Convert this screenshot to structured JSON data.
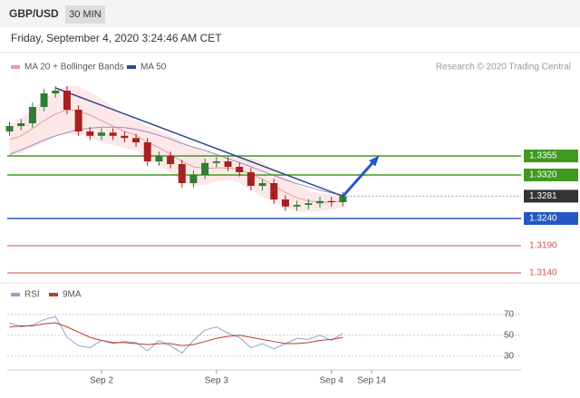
{
  "header": {
    "symbol": "GBP/USD",
    "interval": "30 MIN",
    "timestamp": "Friday, September 4, 2020 3:24:46 AM CET"
  },
  "chart_data": [
    {
      "type": "candlestick",
      "legend": [
        {
          "name": "MA 20 + Bollinger Bands",
          "color": "#e89a9a"
        },
        {
          "name": "MA 50",
          "color": "#2f4a8f"
        }
      ],
      "credit": "Research © 2020 Trading Central",
      "open": [
        1.34,
        1.341,
        1.3415,
        1.3445,
        1.347,
        1.3475,
        1.344,
        1.34,
        1.3392,
        1.3398,
        1.3392,
        1.3388,
        1.338,
        1.3345,
        1.3355,
        1.334,
        1.3305,
        1.332,
        1.3342,
        1.3345,
        1.3335,
        1.3325,
        1.33,
        1.3305,
        1.3275,
        1.3262,
        1.3265,
        1.3268,
        1.3272,
        1.327
      ],
      "high": [
        1.3418,
        1.3423,
        1.3453,
        1.3478,
        1.3483,
        1.3483,
        1.3448,
        1.3408,
        1.3406,
        1.3406,
        1.34,
        1.3396,
        1.3388,
        1.3363,
        1.3363,
        1.3348,
        1.3328,
        1.335,
        1.3353,
        1.3353,
        1.3343,
        1.3333,
        1.3313,
        1.3313,
        1.3283,
        1.3273,
        1.3276,
        1.328,
        1.328,
        1.3289
      ],
      "low": [
        1.3392,
        1.3402,
        1.3407,
        1.3437,
        1.3462,
        1.3432,
        1.3392,
        1.3384,
        1.3384,
        1.3384,
        1.338,
        1.3372,
        1.3337,
        1.3337,
        1.3332,
        1.3297,
        1.3297,
        1.3312,
        1.3334,
        1.3327,
        1.3317,
        1.3292,
        1.3292,
        1.3267,
        1.3254,
        1.3254,
        1.3257,
        1.326,
        1.3262,
        1.3262
      ],
      "close": [
        1.341,
        1.3415,
        1.3445,
        1.347,
        1.3475,
        1.344,
        1.34,
        1.3392,
        1.3398,
        1.3392,
        1.3388,
        1.338,
        1.3345,
        1.3355,
        1.334,
        1.3305,
        1.332,
        1.3342,
        1.3345,
        1.3335,
        1.3325,
        1.33,
        1.3305,
        1.3275,
        1.3262,
        1.3265,
        1.3268,
        1.3272,
        1.327,
        1.3281
      ],
      "ma20": [
        1.3385,
        1.3392,
        1.3405,
        1.342,
        1.3432,
        1.344,
        1.3438,
        1.343,
        1.342,
        1.341,
        1.34,
        1.3393,
        1.338,
        1.337,
        1.3358,
        1.3345,
        1.3335,
        1.3332,
        1.3333,
        1.3333,
        1.333,
        1.3322,
        1.3312,
        1.33,
        1.3288,
        1.3278,
        1.3272,
        1.327,
        1.327,
        1.3272
      ],
      "upper": [
        1.3415,
        1.3424,
        1.344,
        1.346,
        1.3474,
        1.3485,
        1.3483,
        1.3472,
        1.346,
        1.3445,
        1.343,
        1.3421,
        1.341,
        1.3402,
        1.3393,
        1.3383,
        1.337,
        1.3362,
        1.3358,
        1.3355,
        1.3355,
        1.3352,
        1.3344,
        1.333,
        1.3316,
        1.3303,
        1.3292,
        1.3286,
        1.3284,
        1.3284
      ],
      "lower": [
        1.3355,
        1.336,
        1.337,
        1.338,
        1.339,
        1.3395,
        1.3393,
        1.3388,
        1.338,
        1.3375,
        1.337,
        1.3365,
        1.335,
        1.3338,
        1.3323,
        1.3307,
        1.33,
        1.3302,
        1.3308,
        1.3311,
        1.3305,
        1.3292,
        1.328,
        1.327,
        1.326,
        1.3253,
        1.3252,
        1.3254,
        1.3256,
        1.326
      ],
      "ma50": [
        1.3358,
        1.3366,
        1.3375,
        1.3384,
        1.3392,
        1.3398,
        1.3403,
        1.3406,
        1.3408,
        1.3408,
        1.3407,
        1.3404,
        1.3399,
        1.3393,
        1.3386,
        1.3378,
        1.3371,
        1.3365,
        1.3358,
        1.335,
        1.3343,
        1.3335,
        1.3327,
        1.3319,
        1.3311,
        1.3304,
        1.3298,
        1.3292,
        1.3287,
        1.3283
      ],
      "trendline": {
        "x": [
          4,
          29
        ],
        "values": [
          1.348,
          1.3281
        ]
      },
      "arrow": {
        "x": [
          29,
          32
        ],
        "values": [
          1.3281,
          1.3352
        ]
      },
      "levels": [
        {
          "value": 1.3355,
          "label": "1.3355",
          "color": "#3f9a1f"
        },
        {
          "value": 1.332,
          "label": "1.3320",
          "color": "#3f9a1f"
        },
        {
          "value": 1.3281,
          "label": "1.3281",
          "color": "#333333"
        },
        {
          "value": 1.324,
          "label": "1.3240",
          "color": "#2457c5"
        },
        {
          "value": 1.319,
          "label": "1.3190",
          "color": "#d05050"
        },
        {
          "value": 1.314,
          "label": "1.3140",
          "color": "#d05050"
        }
      ],
      "xlim": [
        -0.2,
        44.5
      ],
      "ylim": [
        1.3125,
        1.35
      ],
      "xticks": [
        {
          "value": 8,
          "label": "Sep 2"
        },
        {
          "value": 18,
          "label": "Sep 3"
        },
        {
          "value": 28,
          "label": "Sep 4"
        },
        {
          "value": 31.5,
          "label": "Sep 14"
        }
      ]
    },
    {
      "type": "line",
      "series": [
        {
          "name": "RSI",
          "color": "#8fa3c8",
          "values": [
            62,
            58,
            60,
            65,
            68,
            48,
            40,
            38,
            45,
            42,
            44,
            43,
            35,
            45,
            40,
            33,
            45,
            55,
            58,
            52,
            48,
            38,
            42,
            37,
            42,
            47,
            46,
            50,
            45,
            52
          ]
        },
        {
          "name": "9MA",
          "color": "#c0392b",
          "values": [
            58,
            59,
            59,
            61,
            62,
            58,
            53,
            48,
            45,
            43,
            43,
            42,
            41,
            42,
            42,
            40,
            41,
            44,
            47,
            49,
            50,
            48,
            46,
            44,
            42,
            42,
            43,
            45,
            46,
            48
          ]
        }
      ],
      "ylim": [
        15,
        89
      ],
      "yticks": [
        30,
        50,
        70
      ]
    }
  ]
}
